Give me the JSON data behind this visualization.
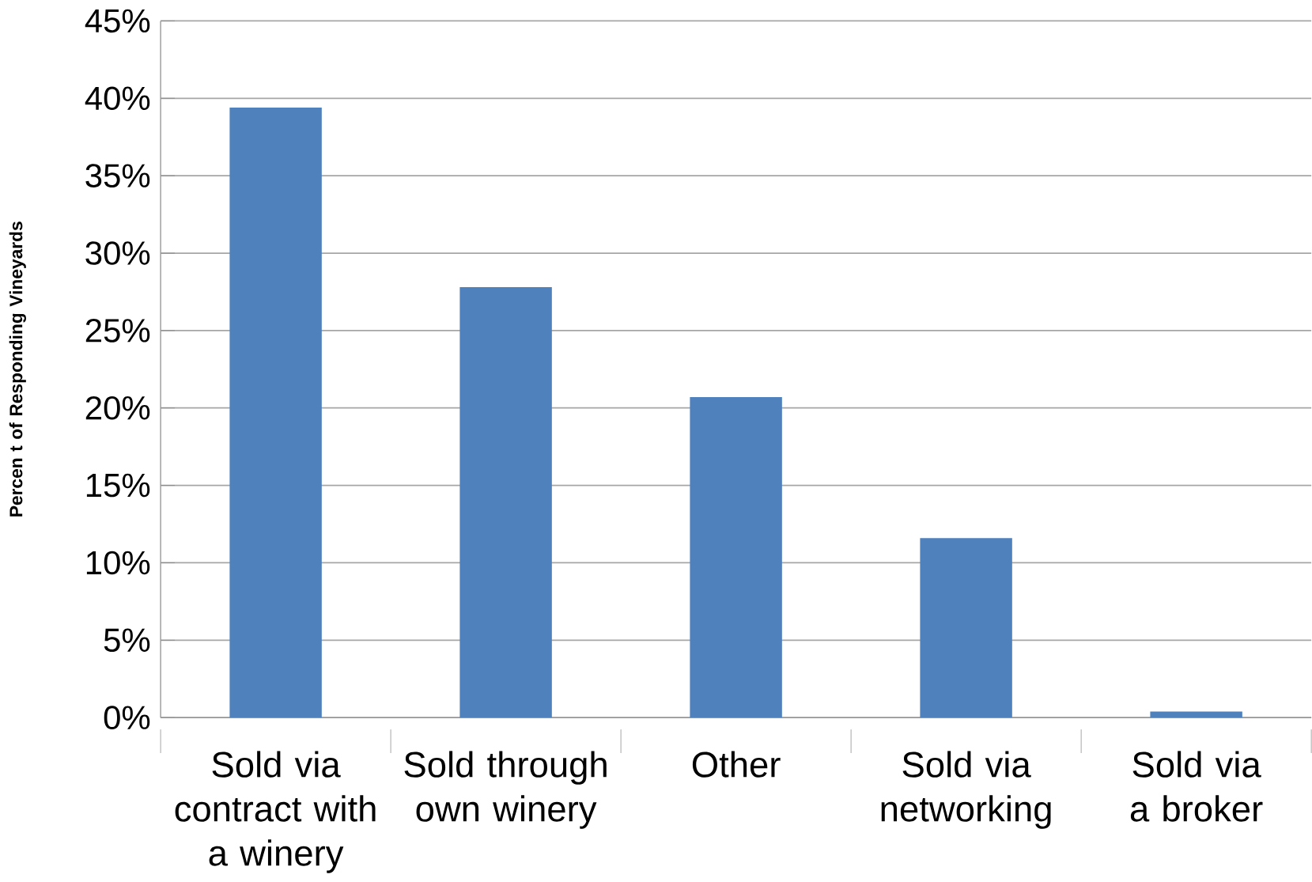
{
  "chart_data": {
    "type": "bar",
    "ylabel": "Percen t of Responding Vineyards",
    "categories": [
      "Sold via contract with a winery",
      "Sold through own winery",
      "Other",
      "Sold via networking",
      "Sold via a broker"
    ],
    "values": [
      39.4,
      27.8,
      20.7,
      11.6,
      0.4
    ],
    "color": "#4f81bd",
    "ylim": [
      0,
      45
    ],
    "yticks": [
      {
        "value": 0,
        "label": "0%"
      },
      {
        "value": 5,
        "label": "5%"
      },
      {
        "value": 10,
        "label": "10%"
      },
      {
        "value": 15,
        "label": "15%"
      },
      {
        "value": 20,
        "label": "20%"
      },
      {
        "value": 25,
        "label": "25%"
      },
      {
        "value": 30,
        "label": "30%"
      },
      {
        "value": 35,
        "label": "35%"
      },
      {
        "value": 40,
        "label": "40%"
      },
      {
        "value": 45,
        "label": "45%"
      }
    ],
    "grid": "y"
  }
}
